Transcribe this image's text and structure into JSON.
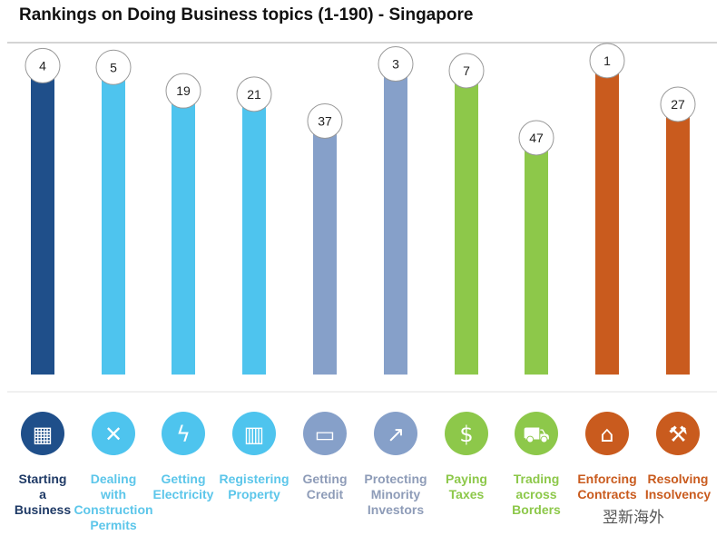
{
  "chart_data": {
    "type": "bar",
    "title": "Rankings on Doing Business topics (1-190) - Singapore",
    "categories": [
      "Starting a Business",
      "Dealing with Construction Permits",
      "Getting Electricity",
      "Registering Property",
      "Getting Credit",
      "Protecting Minority Investors",
      "Paying Taxes",
      "Trading across Borders",
      "Enforcing Contracts",
      "Resolving Insolvency"
    ],
    "category_lines": [
      [
        "Starting",
        "a",
        "Business"
      ],
      [
        "Dealing",
        "with",
        "Construction",
        "Permits"
      ],
      [
        "Getting",
        "Electricity"
      ],
      [
        "Registering",
        "Property"
      ],
      [
        "Getting",
        "Credit"
      ],
      [
        "Protecting",
        "Minority",
        "Investors"
      ],
      [
        "Paying",
        "Taxes"
      ],
      [
        "Trading",
        "across",
        "Borders"
      ],
      [
        "Enforcing",
        "Contracts"
      ],
      [
        "Resolving",
        "Insolvency"
      ]
    ],
    "values": [
      4,
      5,
      19,
      21,
      37,
      3,
      7,
      47,
      1,
      27
    ],
    "colors": [
      "#1f4f8a",
      "#4ec4ee",
      "#4ec4ee",
      "#4ec4ee",
      "#86a0c9",
      "#86a0c9",
      "#8dc84a",
      "#8dc84a",
      "#c95b1e",
      "#c95b1e"
    ],
    "label_colors": [
      "#1f3a66",
      "#5cc6ea",
      "#5cc6ea",
      "#5cc6ea",
      "#8e9cb8",
      "#8e9cb8",
      "#8dc84a",
      "#8dc84a",
      "#c95b1e",
      "#c95b1e"
    ],
    "icons": [
      "storefront-icon",
      "wrench-screwdriver-icon",
      "lightning-icon",
      "building-icon",
      "credit-card-icon",
      "trend-up-icon",
      "money-icon",
      "truck-icon",
      "courthouse-icon",
      "gavel-icon"
    ],
    "xlabel": "",
    "ylabel": "",
    "ylim": [
      1,
      190
    ],
    "y_reversed": true,
    "grid": false,
    "legend": "none"
  },
  "watermark": "翌新海外"
}
